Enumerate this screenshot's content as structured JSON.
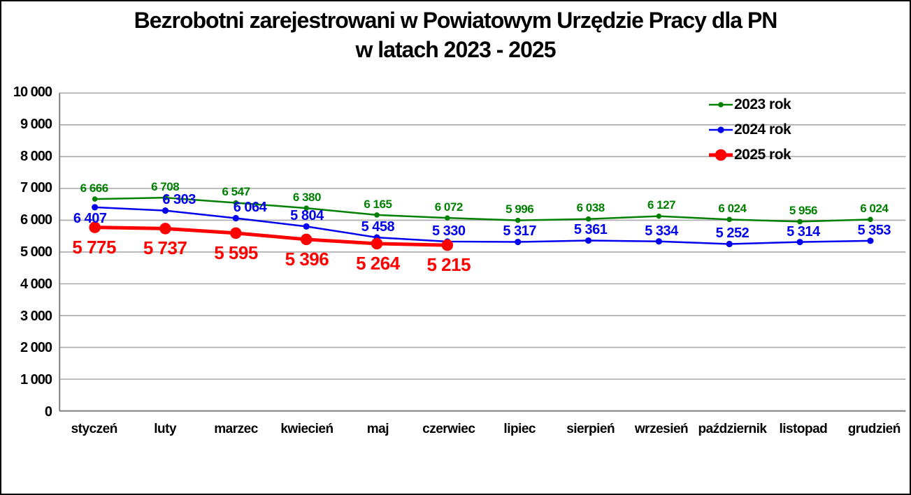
{
  "title": {
    "line1": "Bezrobotni zarejestrowani w Powiatowym Urzędzie Pracy dla PN",
    "line2": "w latach 2023 - 2025"
  },
  "chart_data": {
    "type": "line",
    "title": "Bezrobotni zarejestrowani w Powiatowym Urzędzie Pracy dla PN w latach 2023 - 2025",
    "categories": [
      "styczeń",
      "luty",
      "marzec",
      "kwiecień",
      "maj",
      "czerwiec",
      "lipiec",
      "sierpień",
      "wrzesień",
      "październik",
      "listopad",
      "grudzień"
    ],
    "series": [
      {
        "name": "2023 rok",
        "color": "#008000",
        "values": [
          6666,
          6708,
          6547,
          6380,
          6165,
          6072,
          5996,
          6038,
          6127,
          6024,
          5956,
          6024
        ],
        "labels": [
          "6 666",
          "6 708",
          "6 547",
          "6 380",
          "6 165",
          "6 072",
          "5 996",
          "6 038",
          "6 127",
          "6 024",
          "5 956",
          "6 024"
        ]
      },
      {
        "name": "2024 rok",
        "color": "#0000EE",
        "values": [
          6407,
          6303,
          6064,
          5804,
          5458,
          5330,
          5317,
          5361,
          5334,
          5252,
          5314,
          5353
        ],
        "labels": [
          "6 407",
          "6 303",
          "6 064",
          "5 804",
          "5 458",
          "5 330",
          "5 317",
          "5 361",
          "5 334",
          "5 252",
          "5 314",
          "5 353"
        ]
      },
      {
        "name": "2025 rok",
        "color": "#FF0000",
        "values": [
          5775,
          5737,
          5595,
          5396,
          5264,
          5215
        ],
        "labels": [
          "5 775",
          "5 737",
          "5 595",
          "5 396",
          "5 264",
          "5 215"
        ]
      }
    ],
    "xlabel": "",
    "ylabel": "",
    "ylim": [
      0,
      10000
    ],
    "ytick_step": 1000,
    "ytick_labels": [
      "0",
      "1 000",
      "2 000",
      "3 000",
      "4 000",
      "5 000",
      "6 000",
      "7 000",
      "8 000",
      "9 000",
      "10 000"
    ],
    "grid": true,
    "legend_position": "top-right-inside",
    "colors": {
      "grid": "#A9A9A9",
      "axis": "#7F7F7F",
      "frame": "#000000",
      "background": "#FFFFFF"
    }
  }
}
